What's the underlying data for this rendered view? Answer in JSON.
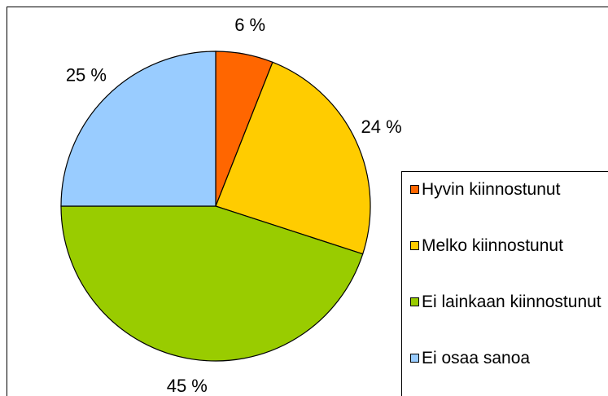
{
  "chart_data": {
    "type": "pie",
    "categories": [
      "Hyvin kiinnostunut",
      "Melko kiinnostunut",
      "Ei lainkaan kiinnostunut",
      "Ei osaa sanoa"
    ],
    "values": [
      6,
      24,
      45,
      25
    ],
    "value_labels": [
      "6 %",
      "24 %",
      "45 %",
      "25 %"
    ],
    "colors": [
      "#ff6600",
      "#ffcc00",
      "#99cc00",
      "#99ccff"
    ],
    "legend": "right"
  }
}
